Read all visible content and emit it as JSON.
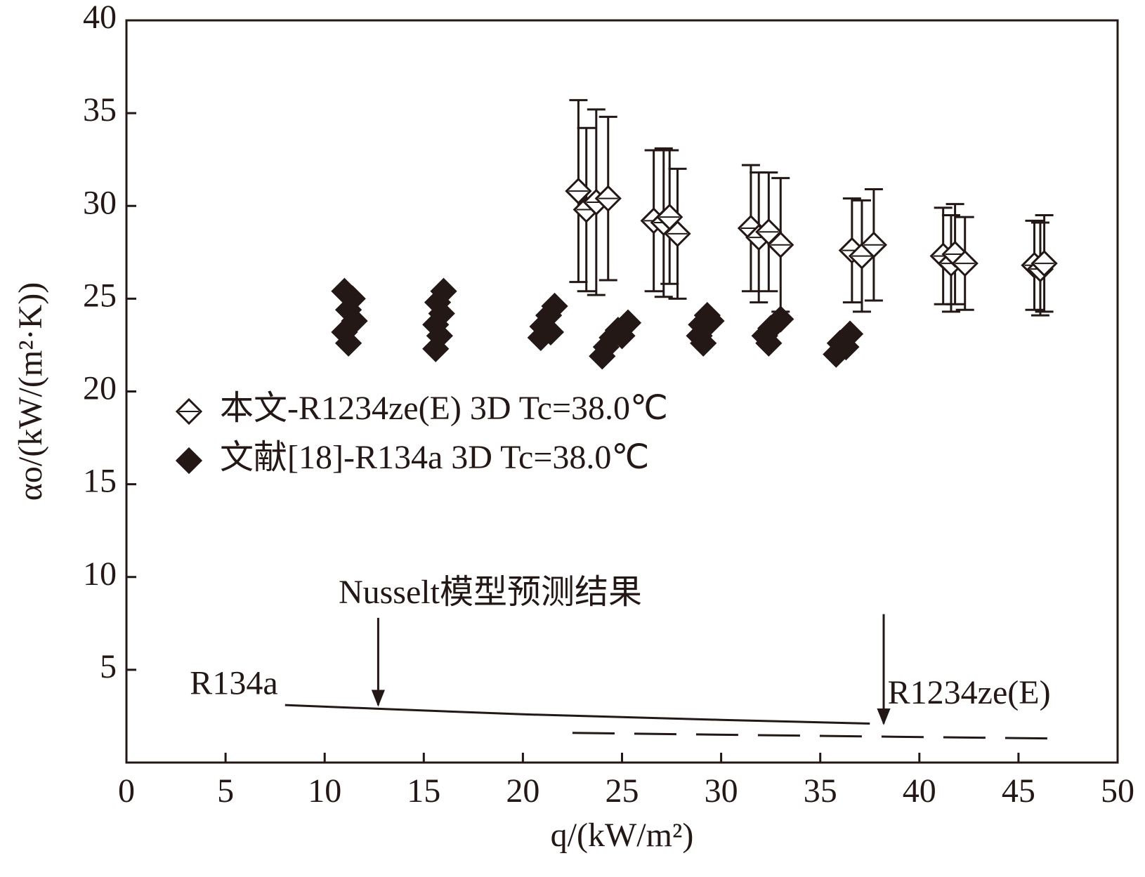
{
  "chart_data": {
    "type": "scatter",
    "x_label": "q/(kW/m²)",
    "y_label": "αo/(kW/(m²·K))",
    "xlim": [
      0,
      50
    ],
    "ylim": [
      0,
      40
    ],
    "xticks": [
      0,
      5,
      10,
      15,
      20,
      25,
      30,
      35,
      40,
      45,
      50
    ],
    "yticks": [
      5,
      10,
      15,
      20,
      25,
      30,
      35,
      40
    ],
    "series": [
      {
        "name": "本文-R1234ze(E) 3D Tc=38.0℃",
        "marker": "open-diamond",
        "color": "#231815",
        "x": [
          22.8,
          23.2,
          23.7,
          24.3,
          26.6,
          27.1,
          27.4,
          27.8,
          31.5,
          31.9,
          32.4,
          33.0,
          36.6,
          37.1,
          37.7,
          41.2,
          41.6,
          41.8,
          42.3,
          45.8,
          46.1,
          46.3
        ],
        "values": [
          30.8,
          29.8,
          30.2,
          30.4,
          29.2,
          29.1,
          29.4,
          28.5,
          28.8,
          28.3,
          28.6,
          27.9,
          27.6,
          27.3,
          27.9,
          27.3,
          26.9,
          27.4,
          26.9,
          26.8,
          26.6,
          26.9
        ],
        "yerr": [
          4.9,
          4.4,
          5.0,
          4.4,
          3.8,
          4.0,
          3.6,
          3.5,
          3.4,
          3.5,
          3.2,
          3.6,
          2.8,
          3.0,
          3.0,
          2.6,
          2.6,
          2.7,
          2.5,
          2.4,
          2.5,
          2.6
        ]
      },
      {
        "name": "文献[18]-R134a 3D Tc=38.0℃",
        "marker": "filled-diamond",
        "color": "#231815",
        "x": [
          11.0,
          11.4,
          11.2,
          11.5,
          11.0,
          11.2,
          16.0,
          15.7,
          15.9,
          15.6,
          15.8,
          15.6,
          21.6,
          21.3,
          21.0,
          21.4,
          20.9,
          25.3,
          24.8,
          24.5,
          24.2,
          24.0,
          25.0,
          29.3,
          29.0,
          29.5,
          28.9,
          29.1,
          33.0,
          32.5,
          32.2,
          32.4,
          36.5,
          36.0,
          35.8,
          36.3
        ],
        "values": [
          25.4,
          25.0,
          24.4,
          23.8,
          23.2,
          22.6,
          25.4,
          24.8,
          24.2,
          23.6,
          23.0,
          22.3,
          24.6,
          24.1,
          23.5,
          23.2,
          22.9,
          23.7,
          23.3,
          22.9,
          22.4,
          21.9,
          23.0,
          24.1,
          23.6,
          23.8,
          23.0,
          22.6,
          23.9,
          23.4,
          23.0,
          22.6,
          23.1,
          22.6,
          22.0,
          22.4
        ]
      }
    ],
    "lines": [
      {
        "name": "R134a",
        "dashed": false,
        "color": "#231815",
        "x": [
          8,
          12.7,
          20,
          30,
          37.5
        ],
        "values": [
          3.1,
          2.9,
          2.6,
          2.3,
          2.1
        ]
      },
      {
        "name": "R1234ze(E)",
        "dashed": true,
        "color": "#231815",
        "x": [
          22.5,
          30,
          38,
          46.5
        ],
        "values": [
          1.6,
          1.5,
          1.4,
          1.3
        ]
      }
    ],
    "annotation": "Nusselt模型预测结果"
  }
}
